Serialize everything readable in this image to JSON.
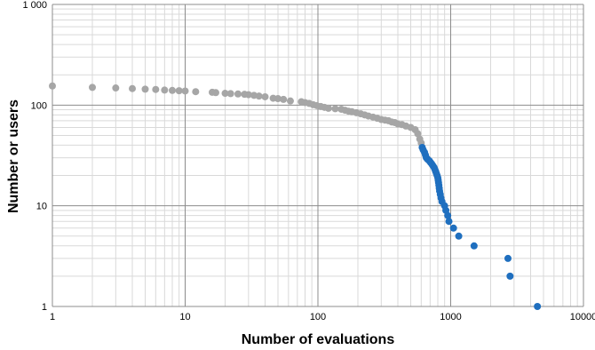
{
  "chart_data": {
    "type": "scatter",
    "title": "",
    "xlabel": "Number of evaluations",
    "ylabel": "Number or users",
    "xscale": "log",
    "yscale": "log",
    "xlim": [
      1,
      10000
    ],
    "ylim": [
      1,
      1000
    ],
    "x_tick_labels": [
      "1",
      "10",
      "100",
      "1000",
      "10000"
    ],
    "y_tick_labels": [
      "1",
      "10",
      "100",
      "1 000"
    ],
    "grid": true,
    "legend": "none",
    "colors": {
      "series_gray": "#a6a6a6",
      "series_blue": "#1f6fbf",
      "grid_major": "#8c8c8c",
      "grid_minor": "#d9d9d9"
    },
    "series": [
      {
        "color_key": "series_gray",
        "points": [
          [
            1,
            155
          ],
          [
            2,
            150
          ],
          [
            3,
            148
          ],
          [
            4,
            146
          ],
          [
            5,
            144
          ],
          [
            6,
            143
          ],
          [
            7,
            141
          ],
          [
            8,
            140
          ],
          [
            9,
            139
          ],
          [
            10,
            138
          ],
          [
            12,
            136
          ],
          [
            16,
            134
          ],
          [
            17,
            133
          ],
          [
            20,
            131
          ],
          [
            22,
            130
          ],
          [
            25,
            129
          ],
          [
            28,
            128
          ],
          [
            30,
            127
          ],
          [
            33,
            125
          ],
          [
            36,
            123
          ],
          [
            40,
            121
          ],
          [
            46,
            117
          ],
          [
            50,
            116
          ],
          [
            55,
            114
          ],
          [
            62,
            110
          ],
          [
            75,
            108
          ],
          [
            80,
            106
          ],
          [
            86,
            104
          ],
          [
            92,
            101
          ],
          [
            98,
            99
          ],
          [
            105,
            97
          ],
          [
            112,
            95
          ],
          [
            120,
            93
          ],
          [
            135,
            92
          ],
          [
            150,
            91
          ],
          [
            160,
            89
          ],
          [
            170,
            87
          ],
          [
            180,
            86
          ],
          [
            195,
            84
          ],
          [
            210,
            82
          ],
          [
            225,
            80
          ],
          [
            240,
            78
          ],
          [
            260,
            76
          ],
          [
            280,
            74
          ],
          [
            300,
            72
          ],
          [
            320,
            71
          ],
          [
            340,
            70
          ],
          [
            360,
            68
          ],
          [
            380,
            67
          ],
          [
            400,
            65
          ],
          [
            430,
            64
          ],
          [
            460,
            62
          ],
          [
            500,
            60
          ],
          [
            540,
            57
          ],
          [
            565,
            52
          ],
          [
            585,
            46
          ],
          [
            600,
            42
          ]
        ]
      },
      {
        "color_key": "series_blue",
        "points": [
          [
            610,
            38
          ],
          [
            620,
            36
          ],
          [
            635,
            34
          ],
          [
            645,
            32
          ],
          [
            655,
            30
          ],
          [
            670,
            29
          ],
          [
            690,
            28
          ],
          [
            705,
            27
          ],
          [
            720,
            26
          ],
          [
            735,
            25
          ],
          [
            750,
            24
          ],
          [
            760,
            23
          ],
          [
            770,
            22
          ],
          [
            780,
            21
          ],
          [
            790,
            20
          ],
          [
            800,
            19
          ],
          [
            805,
            18
          ],
          [
            810,
            17
          ],
          [
            815,
            16
          ],
          [
            820,
            15
          ],
          [
            825,
            14
          ],
          [
            835,
            13
          ],
          [
            845,
            12
          ],
          [
            860,
            11
          ],
          [
            900,
            10
          ],
          [
            920,
            9
          ],
          [
            950,
            8
          ],
          [
            970,
            7
          ],
          [
            1050,
            6
          ],
          [
            1150,
            5
          ],
          [
            1500,
            4
          ],
          [
            2700,
            3
          ],
          [
            2800,
            2
          ],
          [
            4500,
            1
          ]
        ]
      }
    ]
  }
}
